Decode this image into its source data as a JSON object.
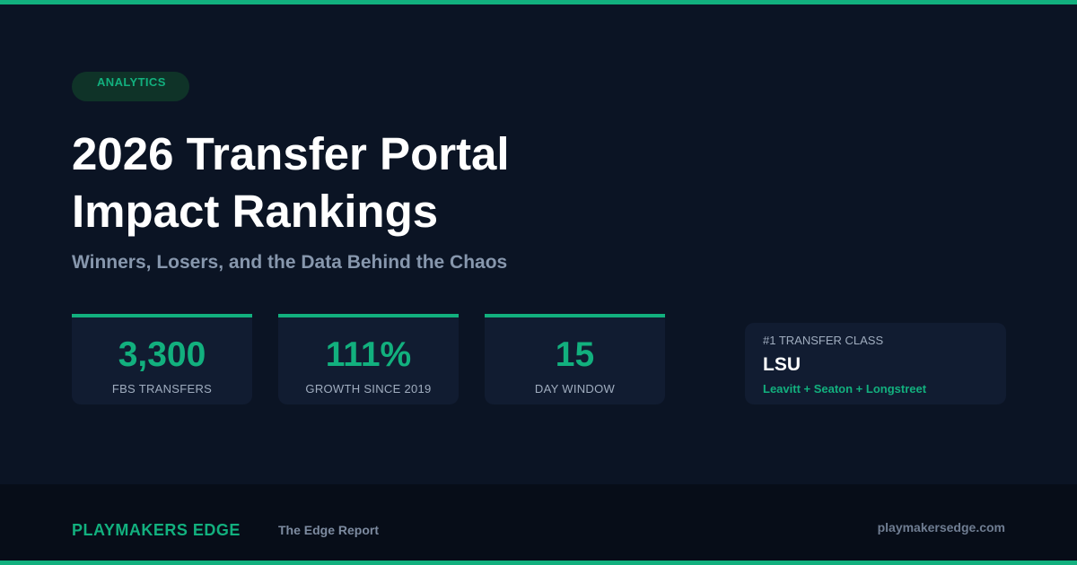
{
  "tag": "ANALYTICS",
  "title": {
    "line1": "2026 Transfer Portal",
    "line2": "Impact Rankings"
  },
  "subtitle": "Winners, Losers, and the Data Behind the Chaos",
  "stats": [
    {
      "value": "3,300",
      "label": "FBS TRANSFERS"
    },
    {
      "value": "111%",
      "label": "GROWTH SINCE 2019"
    },
    {
      "value": "15",
      "label": "DAY WINDOW"
    }
  ],
  "feature": {
    "label": "#1 TRANSFER CLASS",
    "team": "LSU",
    "players": "Leavitt + Seaton + Longstreet"
  },
  "footer": {
    "brand": "PLAYMAKERS EDGE",
    "report": "The Edge Report",
    "site": "playmakersedge.com"
  },
  "colors": {
    "accent": "#12b07e",
    "background": "#0b1424",
    "card": "#111c31",
    "footer": "#070d18"
  }
}
